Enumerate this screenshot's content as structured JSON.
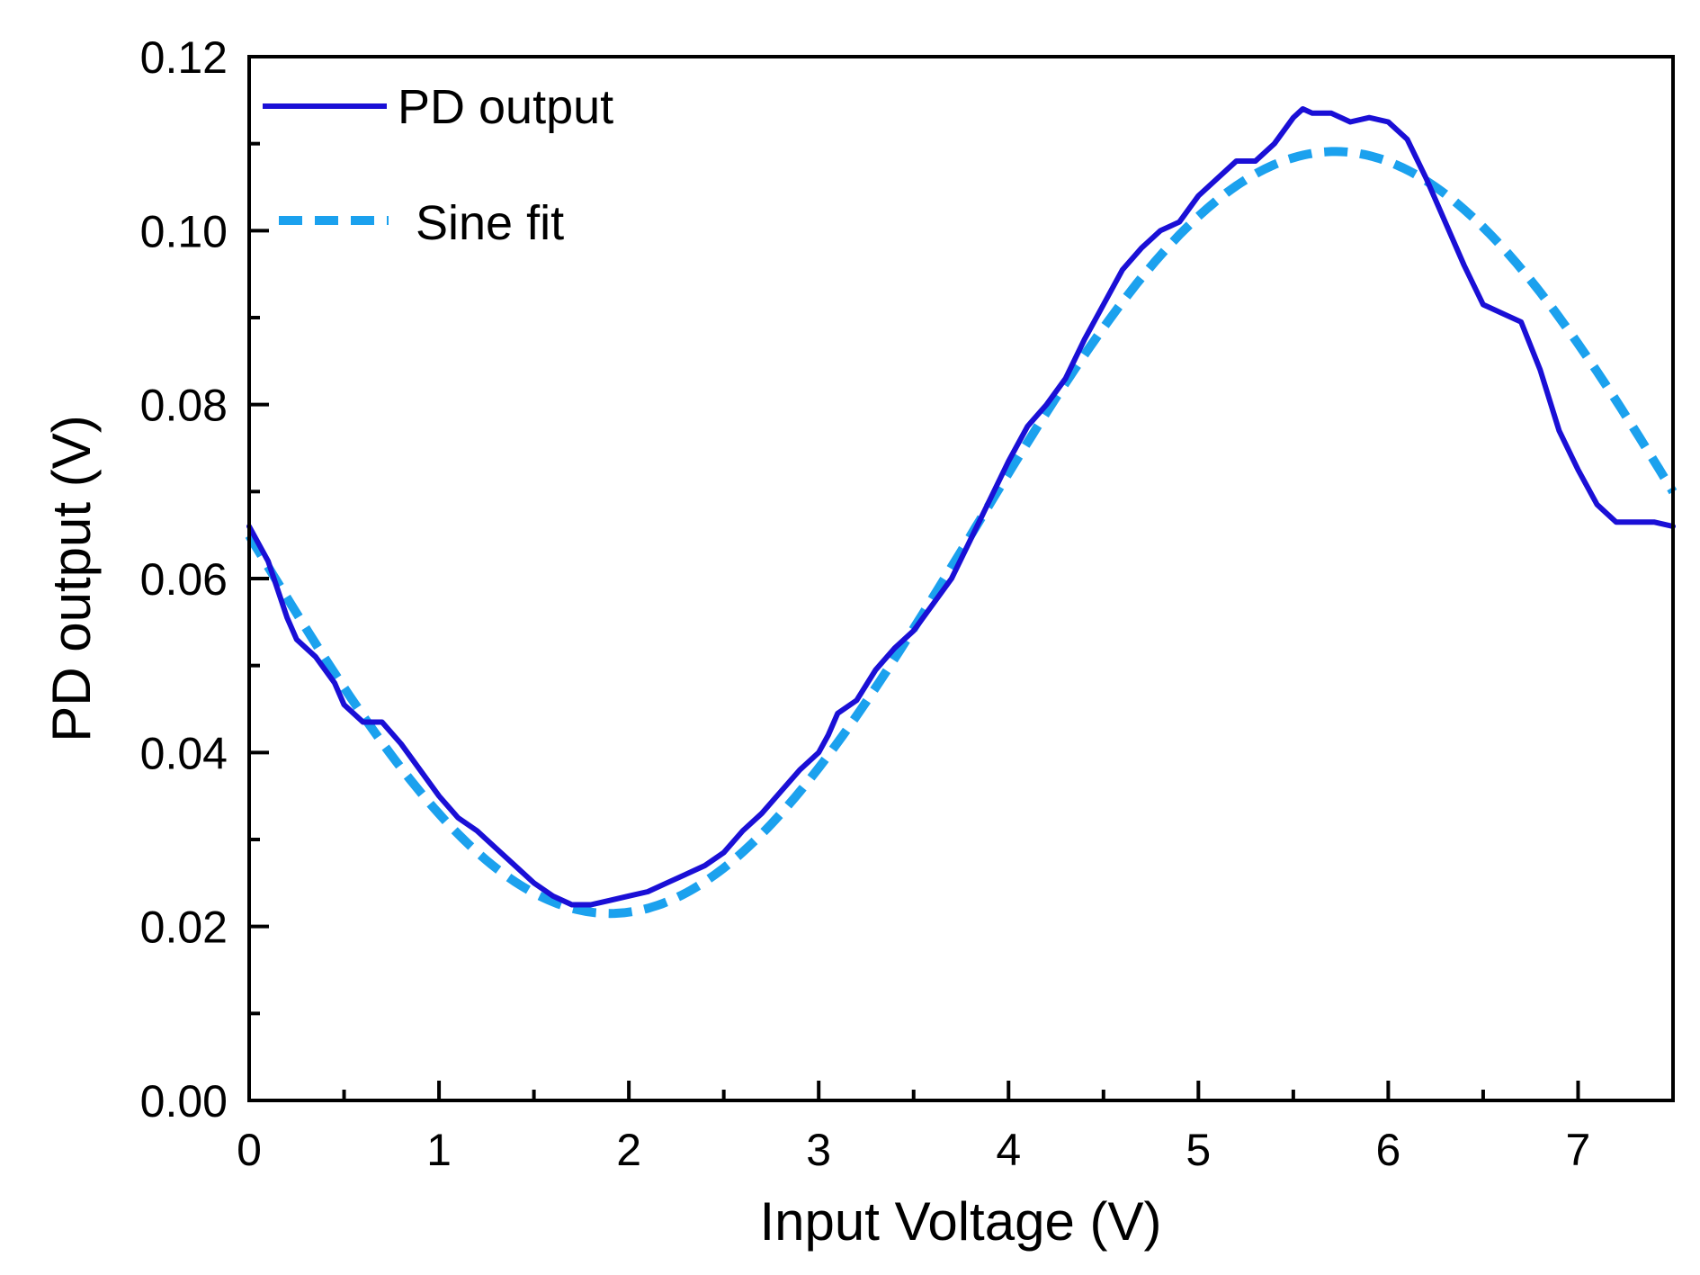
{
  "chart_data": {
    "type": "line",
    "title": "",
    "xlabel": "Input Voltage (V)",
    "ylabel": "PD output (V)",
    "xlim": [
      0,
      7.5
    ],
    "ylim": [
      0,
      0.12
    ],
    "x_ticks": [
      "0",
      "1",
      "2",
      "3",
      "4",
      "5",
      "6",
      "7"
    ],
    "y_ticks": [
      "0.00",
      "0.02",
      "0.04",
      "0.06",
      "0.08",
      "0.10",
      "0.12"
    ],
    "grid": false,
    "legend_position": "top-left",
    "series": [
      {
        "name": "PD output",
        "color": "#1a0fd6",
        "style": "solid",
        "x": [
          0,
          0.1,
          0.2,
          0.25,
          0.35,
          0.45,
          0.5,
          0.6,
          0.7,
          0.8,
          0.9,
          1.0,
          1.1,
          1.2,
          1.3,
          1.4,
          1.5,
          1.6,
          1.7,
          1.8,
          1.9,
          2.0,
          2.1,
          2.2,
          2.3,
          2.4,
          2.5,
          2.6,
          2.7,
          2.8,
          2.9,
          3.0,
          3.05,
          3.1,
          3.2,
          3.3,
          3.4,
          3.5,
          3.6,
          3.7,
          3.8,
          3.9,
          4.0,
          4.1,
          4.2,
          4.3,
          4.4,
          4.5,
          4.6,
          4.7,
          4.8,
          4.9,
          5.0,
          5.1,
          5.2,
          5.3,
          5.4,
          5.5,
          5.55,
          5.6,
          5.7,
          5.8,
          5.9,
          6.0,
          6.1,
          6.2,
          6.3,
          6.4,
          6.5,
          6.6,
          6.7,
          6.8,
          6.9,
          7.0,
          7.1,
          7.2,
          7.3,
          7.4,
          7.5
        ],
        "values": [
          0.066,
          0.062,
          0.0555,
          0.053,
          0.051,
          0.048,
          0.0455,
          0.0435,
          0.0435,
          0.041,
          0.038,
          0.035,
          0.0325,
          0.031,
          0.029,
          0.027,
          0.025,
          0.0235,
          0.0225,
          0.0225,
          0.023,
          0.0235,
          0.024,
          0.025,
          0.026,
          0.027,
          0.0285,
          0.031,
          0.033,
          0.0355,
          0.038,
          0.04,
          0.042,
          0.0445,
          0.046,
          0.0495,
          0.052,
          0.054,
          0.057,
          0.06,
          0.0645,
          0.069,
          0.0735,
          0.0775,
          0.08,
          0.083,
          0.0875,
          0.0915,
          0.0955,
          0.098,
          0.1,
          0.101,
          0.104,
          0.106,
          0.108,
          0.108,
          0.11,
          0.113,
          0.114,
          0.1135,
          0.1135,
          0.1125,
          0.113,
          0.1125,
          0.1105,
          0.106,
          0.101,
          0.096,
          0.0915,
          0.0905,
          0.0895,
          0.084,
          0.077,
          0.0725,
          0.0685,
          0.0665,
          0.0665,
          0.0665,
          0.066
        ]
      },
      {
        "name": "Sine fit",
        "color": "#1ba1ee",
        "style": "dashed",
        "function": "sine",
        "offset": 0.0653,
        "amplitude": 0.0438,
        "period": 7.64,
        "peak_x": 5.72,
        "x_range": [
          0,
          7.5
        ]
      }
    ]
  }
}
